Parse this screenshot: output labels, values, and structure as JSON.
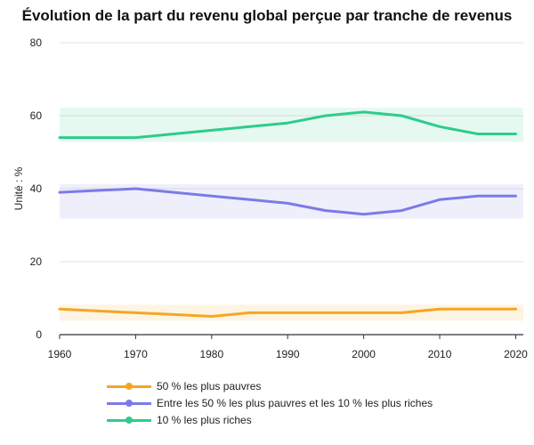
{
  "chart_data": {
    "type": "line",
    "title": "Évolution de la part du revenu global perçue par tranche de revenus",
    "ylabel": "Unité : %",
    "xlabel": "",
    "xlim": [
      1960,
      2021
    ],
    "ylim": [
      0,
      80
    ],
    "xticks": [
      "1960",
      "1970",
      "1980",
      "1990",
      "2000",
      "2010",
      "2020"
    ],
    "yticks": [
      "0",
      "20",
      "40",
      "60",
      "80"
    ],
    "grid": "horizontal",
    "legend_position": "bottom",
    "series": [
      {
        "name": "50 % les plus pauvres",
        "color": "#f5a623",
        "x": [
          1960,
          1965,
          1970,
          1975,
          1980,
          1985,
          1990,
          1995,
          2000,
          2005,
          2010,
          2015,
          2020
        ],
        "values": [
          7,
          6.5,
          6,
          5.5,
          5,
          6,
          6,
          6,
          6,
          6,
          7,
          7,
          7
        ]
      },
      {
        "name": "Entre les 50 % les plus pauvres et les 10 % les plus riches",
        "color": "#7b7be8",
        "x": [
          1960,
          1965,
          1970,
          1975,
          1980,
          1985,
          1990,
          1995,
          2000,
          2005,
          2010,
          2015,
          2020
        ],
        "values": [
          39,
          39.5,
          40,
          39,
          38,
          37,
          36,
          34,
          33,
          34,
          37,
          38,
          38
        ]
      },
      {
        "name": "10 % les plus riches",
        "color": "#2ecc8a",
        "x": [
          1960,
          1965,
          1970,
          1975,
          1980,
          1985,
          1990,
          1995,
          2000,
          2005,
          2010,
          2015,
          2020
        ],
        "values": [
          54,
          54,
          54,
          55,
          56,
          57,
          58,
          60,
          61,
          60,
          57,
          55,
          55
        ]
      }
    ]
  }
}
